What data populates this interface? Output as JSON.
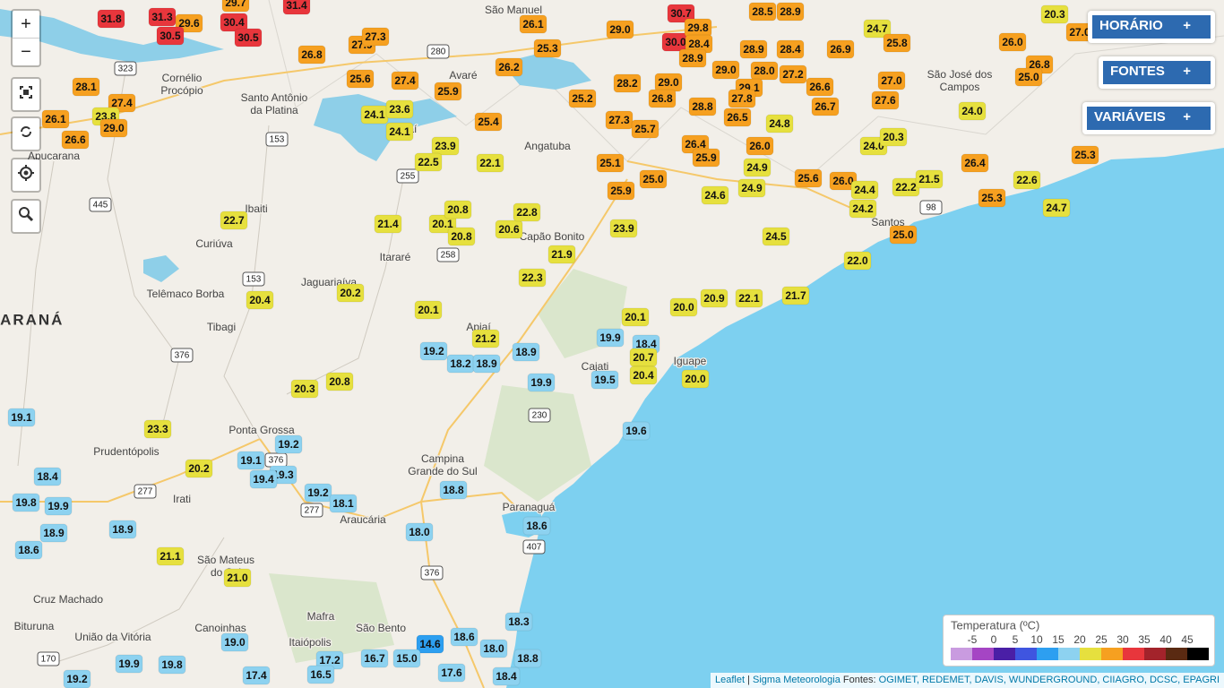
{
  "controls": {
    "zoom_in": "+",
    "zoom_out": "−"
  },
  "panels": [
    {
      "label": "HORÁRIO",
      "toggle": "+"
    },
    {
      "label": "FONTES",
      "toggle": "+"
    },
    {
      "label": "VARIÁVEIS",
      "toggle": "+"
    }
  ],
  "legend": {
    "title": "Temperatura (ºC)",
    "ticks": [
      -5,
      0,
      5,
      10,
      15,
      20,
      25,
      30,
      35,
      40,
      45
    ],
    "colors": [
      "#c99be0",
      "#a545c4",
      "#4a1fa6",
      "#3f55e0",
      "#2d9ff0",
      "#8dd2f0",
      "#e6e03e",
      "#f6a020",
      "#e8363c",
      "#a3232b",
      "#5a2a12",
      "#000000"
    ]
  },
  "attribution": {
    "leaflet": "Leaflet",
    "separator": "|",
    "provider": "Sigma Meteorologia",
    "sources_label": "Fontes:",
    "sources": "OGIMET, REDEMET, DAVIS, WUNDERGROUND, CIIAGRO, DCSC, EPAGRI"
  },
  "region_label": "PARANÁ",
  "places": [
    [
      "Cornélio",
      "Procópio"
    ],
    [
      "Santo Antônio",
      "da Platina"
    ],
    [
      "Apucarana"
    ],
    [
      "Avaré"
    ],
    [
      "Angatuba"
    ],
    [
      "Capão Bonito"
    ],
    [
      "Itararé"
    ],
    [
      "Jaguariaíva"
    ],
    [
      "Ibaiti"
    ],
    [
      "Curiúva"
    ],
    [
      "Telêmaco Borba"
    ],
    [
      "Tibagi"
    ],
    [
      "Itaí"
    ],
    [
      "Apiaí"
    ],
    [
      "Cajati"
    ],
    [
      "Iguape"
    ],
    [
      "Ponta Grossa"
    ],
    [
      "Prudentópolis"
    ],
    [
      "Irati"
    ],
    [
      "Campina",
      "Grande do Sul"
    ],
    [
      "Araucária"
    ],
    [
      "Paranaguá"
    ],
    [
      "São Mateus",
      "do Sul"
    ],
    [
      "Cruz Machado"
    ],
    [
      "Bituruna"
    ],
    [
      "União da Vitória"
    ],
    [
      "Canoinhas"
    ],
    [
      "Mafra"
    ],
    [
      "São Bento"
    ],
    [
      "Itaiópolis"
    ],
    [
      "Santos"
    ],
    [
      "São José dos",
      "Campos"
    ],
    [
      "São Manuel"
    ]
  ],
  "road_shields": [
    "323",
    "280",
    "153",
    "255",
    "258",
    "445",
    "153",
    "376",
    "376",
    "277",
    "277",
    "230",
    "407",
    "376",
    "98",
    "170"
  ],
  "markers": [
    "31.8",
    "31.3",
    "29.6",
    "30.4",
    "30.5",
    "30.5",
    "31.4",
    "29.7",
    "26.8",
    "27.9",
    "27.3",
    "25.6",
    "27.4",
    "25.9",
    "26.2",
    "26.1",
    "25.3",
    "29.0",
    "30.7",
    "30.0",
    "29.8",
    "28.4",
    "28.9",
    "29.0",
    "28.5",
    "28.9",
    "28.9",
    "28.4",
    "26.9",
    "28.0",
    "27.2",
    "24.7",
    "25.8",
    "26.0",
    "27.0",
    "20.3",
    "26.8",
    "25.0",
    "28.1",
    "27.4",
    "26.1",
    "23.8",
    "29.0",
    "26.6",
    "24.1",
    "23.6",
    "24.1",
    "25.4",
    "28.2",
    "29.0",
    "26.8",
    "25.2",
    "27.3",
    "25.7",
    "28.8",
    "26.5",
    "29.1",
    "27.8",
    "24.8",
    "26.7",
    "26.6",
    "27.6",
    "27.0",
    "24.0",
    "23.9",
    "22.5",
    "22.1",
    "25.1",
    "25.0",
    "25.9",
    "26.4",
    "25.9",
    "26.0",
    "24.9",
    "24.9",
    "24.6",
    "24.0",
    "20.3",
    "26.4",
    "25.3",
    "22.6",
    "25.6",
    "26.0",
    "24.4",
    "22.2",
    "21.5",
    "25.3",
    "24.2",
    "24.7",
    "25.0",
    "24.5",
    "22.0",
    "22.7",
    "21.4",
    "20.1",
    "20.8",
    "20.8",
    "20.6",
    "22.8",
    "23.9",
    "21.9",
    "22.3",
    "20.4",
    "20.2",
    "20.1",
    "20.0",
    "20.9",
    "22.1",
    "21.7",
    "20.1",
    "21.2",
    "19.2",
    "18.2",
    "18.9",
    "18.9",
    "19.9",
    "18.4",
    "20.7",
    "20.4",
    "19.5",
    "20.0",
    "19.9",
    "20.3",
    "20.8",
    "19.1",
    "23.3",
    "19.6",
    "19.2",
    "19.1",
    "19.3",
    "19.4",
    "20.2",
    "18.4",
    "19.8",
    "19.9",
    "19.2",
    "18.1",
    "18.8",
    "18.0",
    "18.6",
    "18.9",
    "18.6",
    "18.9",
    "21.1",
    "21.0",
    "19.0",
    "18.3",
    "18.6",
    "14.6",
    "18.0",
    "18.8",
    "15.0",
    "16.7",
    "17.2",
    "16.5",
    "17.4",
    "19.9",
    "19.8",
    "19.2",
    "17.6",
    "18.4"
  ]
}
